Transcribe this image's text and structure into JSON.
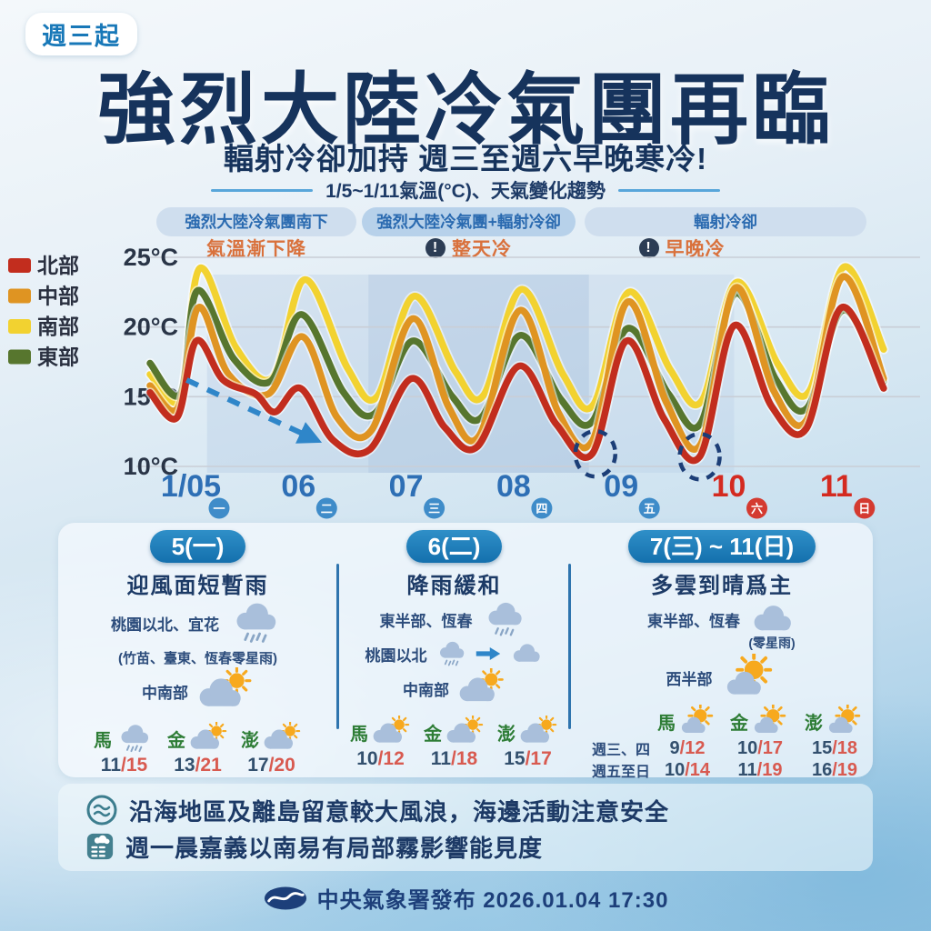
{
  "badge": "週三起",
  "title": "強烈大陸冷氣團再臨",
  "subtitle": "輻射冷卻加持 週三至週六早晚寒冷!",
  "chart_header": "1/5~1/11氣溫(°C)、天氣變化趨勢",
  "temp_separator": "/",
  "phases": [
    {
      "pill": "強烈大陸冷氣團南下",
      "note": "氣溫漸下降",
      "warn": false
    },
    {
      "pill": "強烈大陸冷氣團+輻射冷卻",
      "note": "整天冷",
      "warn": true
    },
    {
      "pill": "輻射冷卻",
      "note": "早晚冷",
      "warn": true
    }
  ],
  "chart_data": {
    "type": "line",
    "title": "1/5~1/11氣溫(°C)、天氣變化趨勢",
    "ylabel": "氣溫(°C)",
    "ylim": [
      10,
      25
    ],
    "yticks": [
      25,
      20,
      15,
      10
    ],
    "grid": true,
    "legend_position": "left",
    "legend": [
      {
        "label": "北部",
        "color": "#c22d1e"
      },
      {
        "label": "中部",
        "color": "#df9422"
      },
      {
        "label": "南部",
        "color": "#f2d230"
      },
      {
        "label": "東部",
        "color": "#57762e"
      }
    ],
    "days": [
      {
        "label": "1/05",
        "weekday": "一",
        "weekend": false
      },
      {
        "label": "06",
        "weekday": "二",
        "weekend": false
      },
      {
        "label": "07",
        "weekday": "三",
        "weekend": false
      },
      {
        "label": "08",
        "weekday": "四",
        "weekend": false
      },
      {
        "label": "09",
        "weekday": "五",
        "weekend": false
      },
      {
        "label": "10",
        "weekday": "六",
        "weekend": true
      },
      {
        "label": "11",
        "weekday": "日",
        "weekend": true
      }
    ],
    "series": [
      {
        "name": "北部",
        "color": "#c22d1e",
        "points": [
          [
            4.62,
            15.3
          ],
          [
            4.87,
            13.5
          ],
          [
            5.05,
            19.0
          ],
          [
            5.3,
            16.2
          ],
          [
            5.6,
            15.2
          ],
          [
            5.78,
            13.9
          ],
          [
            6.02,
            15.6
          ],
          [
            6.32,
            11.9
          ],
          [
            6.66,
            11.2
          ],
          [
            7.05,
            16.3
          ],
          [
            7.36,
            12.8
          ],
          [
            7.66,
            11.4
          ],
          [
            8.05,
            17.2
          ],
          [
            8.4,
            13.0
          ],
          [
            8.73,
            10.9
          ],
          [
            9.05,
            19.0
          ],
          [
            9.4,
            13.4
          ],
          [
            9.73,
            10.7
          ],
          [
            10.05,
            20.1
          ],
          [
            10.4,
            14.3
          ],
          [
            10.72,
            12.7
          ],
          [
            11.05,
            21.4
          ],
          [
            11.44,
            15.6
          ]
        ]
      },
      {
        "name": "中部",
        "color": "#df9422",
        "points": [
          [
            4.62,
            15.8
          ],
          [
            4.88,
            14.2
          ],
          [
            5.07,
            21.4
          ],
          [
            5.35,
            16.6
          ],
          [
            5.72,
            15.2
          ],
          [
            6.04,
            19.3
          ],
          [
            6.36,
            13.5
          ],
          [
            6.68,
            12.6
          ],
          [
            7.06,
            20.6
          ],
          [
            7.4,
            14.2
          ],
          [
            7.68,
            12.2
          ],
          [
            8.06,
            21.2
          ],
          [
            8.42,
            13.8
          ],
          [
            8.73,
            11.8
          ],
          [
            9.06,
            21.8
          ],
          [
            9.42,
            14.6
          ],
          [
            9.74,
            11.6
          ],
          [
            10.06,
            22.8
          ],
          [
            10.42,
            15.4
          ],
          [
            10.73,
            13.4
          ],
          [
            11.06,
            23.6
          ],
          [
            11.44,
            16.3
          ]
        ]
      },
      {
        "name": "南部",
        "color": "#f2d230",
        "points": [
          [
            4.62,
            16.6
          ],
          [
            4.9,
            14.9
          ],
          [
            5.08,
            24.2
          ],
          [
            5.42,
            18.5
          ],
          [
            5.76,
            16.4
          ],
          [
            6.06,
            23.4
          ],
          [
            6.46,
            17.0
          ],
          [
            6.73,
            15.0
          ],
          [
            7.07,
            22.2
          ],
          [
            7.46,
            16.8
          ],
          [
            7.72,
            15.1
          ],
          [
            8.07,
            22.7
          ],
          [
            8.46,
            16.6
          ],
          [
            8.74,
            14.4
          ],
          [
            9.07,
            22.5
          ],
          [
            9.46,
            16.9
          ],
          [
            9.75,
            14.7
          ],
          [
            10.07,
            23.2
          ],
          [
            10.46,
            17.3
          ],
          [
            10.75,
            15.4
          ],
          [
            11.07,
            24.3
          ],
          [
            11.44,
            18.4
          ]
        ]
      },
      {
        "name": "東部",
        "color": "#57762e",
        "points": [
          [
            4.62,
            17.4
          ],
          [
            4.9,
            15.2
          ],
          [
            5.06,
            22.6
          ],
          [
            5.4,
            17.7
          ],
          [
            5.74,
            16.1
          ],
          [
            6.03,
            20.9
          ],
          [
            6.42,
            15.3
          ],
          [
            6.71,
            13.8
          ],
          [
            7.06,
            19.0
          ],
          [
            7.43,
            15.0
          ],
          [
            7.7,
            13.5
          ],
          [
            8.06,
            19.4
          ],
          [
            8.44,
            14.8
          ],
          [
            8.73,
            13.2
          ],
          [
            9.06,
            19.9
          ],
          [
            9.44,
            15.2
          ],
          [
            9.74,
            13.1
          ],
          [
            10.06,
            22.4
          ],
          [
            10.44,
            16.2
          ],
          [
            10.73,
            14.2
          ],
          [
            11.06,
            21.2
          ],
          [
            11.44,
            16.1
          ]
        ]
      }
    ],
    "annotations": {
      "trend_arrow": {
        "from": [
          4.96,
          16.2
        ],
        "to": [
          6.08,
          12.2
        ],
        "color": "#2f86c9"
      },
      "low_circles": [
        [
          8.76,
          10.9
        ],
        [
          9.73,
          10.7
        ]
      ],
      "cold_shading": [
        {
          "from_day": 5.15,
          "to_day": 6.65,
          "intensity": 0.2
        },
        {
          "from_day": 6.65,
          "to_day": 8.7,
          "intensity": 0.38
        },
        {
          "from_day": 8.7,
          "to_day": 10.05,
          "intensity": 0.15
        }
      ]
    }
  },
  "panels": [
    {
      "header": "5(一)",
      "headline": "迎風面短暫雨",
      "rows": [
        {
          "label": "桃園以北、宜花",
          "icon": "rain-cloud-icon"
        },
        {
          "label": "(竹苗、臺東、恆春零星雨)",
          "icon": null
        },
        {
          "label": "中南部",
          "icon": "sun-behind-cloud-icon"
        }
      ],
      "islands": [
        {
          "name": "馬",
          "icon": "rain-cloud-icon",
          "low": "11",
          "high": "15"
        },
        {
          "name": "金",
          "icon": "sun-behind-cloud-icon",
          "low": "13",
          "high": "21"
        },
        {
          "name": "澎",
          "icon": "sun-behind-cloud-icon",
          "low": "17",
          "high": "20"
        }
      ]
    },
    {
      "header": "6(二)",
      "headline": "降雨緩和",
      "rows": [
        {
          "label": "東半部、恆春",
          "icon": "rain-cloud-icon"
        },
        {
          "label": "桃園以北",
          "icon": "rain-to-cloud-icon"
        },
        {
          "label": "中南部",
          "icon": "sun-behind-cloud-icon"
        }
      ],
      "islands": [
        {
          "name": "馬",
          "icon": "sun-behind-cloud-icon",
          "low": "10",
          "high": "12"
        },
        {
          "name": "金",
          "icon": "sun-behind-cloud-icon",
          "low": "11",
          "high": "18"
        },
        {
          "name": "澎",
          "icon": "sun-behind-cloud-icon",
          "low": "15",
          "high": "17"
        }
      ]
    },
    {
      "header": "7(三) ~ 11(日)",
      "headline": "多雲到晴爲主",
      "rows": [
        {
          "label": "東半部、恆春",
          "icon": "cloud-icon",
          "sub": "(零星雨)"
        },
        {
          "label": "西半部",
          "icon": "sun-with-cloud-icon"
        }
      ],
      "island_names": [
        "馬",
        "金",
        "澎"
      ],
      "temp_rows": [
        {
          "label": "週三、四",
          "temps": [
            {
              "low": "9",
              "high": "12"
            },
            {
              "low": "10",
              "high": "17"
            },
            {
              "low": "15",
              "high": "18"
            }
          ]
        },
        {
          "label": "週五至日",
          "temps": [
            {
              "low": "10",
              "high": "14"
            },
            {
              "low": "11",
              "high": "19"
            },
            {
              "low": "16",
              "high": "19"
            }
          ]
        }
      ]
    }
  ],
  "notes": [
    {
      "icon": "wave-icon",
      "text": "沿海地區及離島留意較大風浪，海邊活動注意安全"
    },
    {
      "icon": "fog-icon",
      "text": "週一晨嘉義以南易有局部霧影響能見度"
    }
  ],
  "footer": {
    "text": "中央氣象署發布 2026.01.04 17:30"
  }
}
